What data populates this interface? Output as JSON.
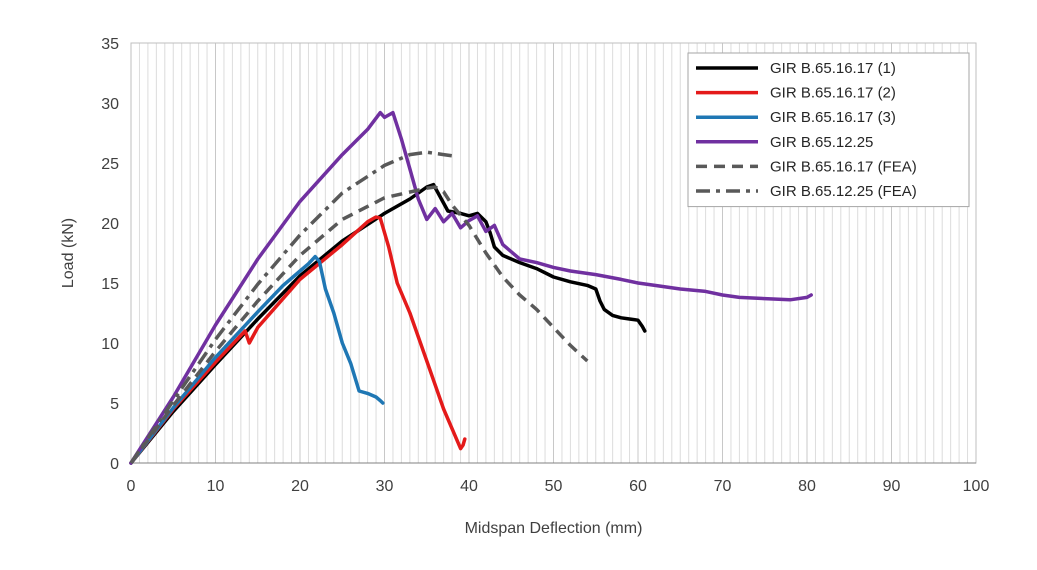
{
  "chart_data": {
    "type": "line",
    "title": "",
    "xlabel": "Midspan Deflection (mm)",
    "ylabel": "Load (kN)",
    "xlim": [
      0,
      100
    ],
    "ylim": [
      0,
      35
    ],
    "xticks": [
      0,
      10,
      20,
      30,
      40,
      50,
      60,
      70,
      80,
      90,
      100
    ],
    "yticks": [
      0,
      5,
      10,
      15,
      20,
      25,
      30,
      35
    ],
    "x_minor_grid_step": 1,
    "grid": true,
    "legend_position": "top-right",
    "series": [
      {
        "name": "GIR B.65.16.17 (1)",
        "color": "#000000",
        "dash": "solid",
        "points": [
          [
            0,
            0
          ],
          [
            5,
            4.3
          ],
          [
            10,
            8.2
          ],
          [
            15,
            12.0
          ],
          [
            20,
            15.6
          ],
          [
            25,
            18.5
          ],
          [
            30,
            20.8
          ],
          [
            33,
            22.0
          ],
          [
            35,
            23.0
          ],
          [
            35.8,
            23.2
          ],
          [
            36.5,
            22.3
          ],
          [
            37.5,
            21.0
          ],
          [
            39,
            20.8
          ],
          [
            40,
            20.6
          ],
          [
            41,
            20.8
          ],
          [
            42,
            20.1
          ],
          [
            42.5,
            19.2
          ],
          [
            43,
            18.0
          ],
          [
            44,
            17.3
          ],
          [
            46,
            16.7
          ],
          [
            48,
            16.2
          ],
          [
            50,
            15.5
          ],
          [
            52,
            15.1
          ],
          [
            54,
            14.8
          ],
          [
            55,
            14.5
          ],
          [
            55.5,
            13.5
          ],
          [
            56,
            12.8
          ],
          [
            57,
            12.3
          ],
          [
            58,
            12.1
          ],
          [
            59,
            12.0
          ],
          [
            60,
            11.9
          ],
          [
            60.5,
            11.4
          ],
          [
            60.8,
            11.0
          ]
        ]
      },
      {
        "name": "GIR B.65.16.17 (2)",
        "color": "#e41a1a",
        "dash": "solid",
        "points": [
          [
            0,
            0
          ],
          [
            5,
            4.5
          ],
          [
            10,
            8.4
          ],
          [
            13.5,
            11.0
          ],
          [
            14,
            10.0
          ],
          [
            15,
            11.3
          ],
          [
            20,
            15.3
          ],
          [
            25,
            18.2
          ],
          [
            28,
            20.1
          ],
          [
            29,
            20.5
          ],
          [
            29.5,
            20.4
          ],
          [
            30.5,
            18.0
          ],
          [
            31.5,
            15.0
          ],
          [
            33,
            12.5
          ],
          [
            35,
            8.5
          ],
          [
            37,
            4.5
          ],
          [
            39,
            1.2
          ],
          [
            39.3,
            1.5
          ],
          [
            39.5,
            2.0
          ]
        ]
      },
      {
        "name": "GIR B.65.16.17 (3)",
        "color": "#1f77b4",
        "dash": "solid",
        "points": [
          [
            0,
            0
          ],
          [
            5,
            4.6
          ],
          [
            10,
            8.8
          ],
          [
            15,
            12.6
          ],
          [
            18,
            14.8
          ],
          [
            20,
            16.0
          ],
          [
            21,
            16.6
          ],
          [
            21.8,
            17.2
          ],
          [
            22.3,
            16.8
          ],
          [
            23,
            14.5
          ],
          [
            24,
            12.5
          ],
          [
            25,
            10.0
          ],
          [
            26,
            8.3
          ],
          [
            27,
            6.0
          ],
          [
            28,
            5.8
          ],
          [
            29,
            5.5
          ],
          [
            29.5,
            5.2
          ],
          [
            29.8,
            5.0
          ]
        ]
      },
      {
        "name": "GIR B.65.12.25",
        "color": "#7030a0",
        "dash": "solid",
        "points": [
          [
            0,
            0
          ],
          [
            5,
            5.5
          ],
          [
            10,
            11.5
          ],
          [
            15,
            17.0
          ],
          [
            20,
            21.8
          ],
          [
            25,
            25.7
          ],
          [
            28,
            27.8
          ],
          [
            29.5,
            29.2
          ],
          [
            30,
            28.8
          ],
          [
            31,
            29.2
          ],
          [
            32,
            27.0
          ],
          [
            33,
            24.5
          ],
          [
            34,
            22.0
          ],
          [
            35,
            20.3
          ],
          [
            36,
            21.2
          ],
          [
            37,
            20.1
          ],
          [
            38,
            20.8
          ],
          [
            39,
            19.6
          ],
          [
            40,
            20.2
          ],
          [
            41,
            20.6
          ],
          [
            42,
            19.3
          ],
          [
            43,
            19.8
          ],
          [
            44,
            18.2
          ],
          [
            45,
            17.6
          ],
          [
            46,
            17.0
          ],
          [
            48,
            16.7
          ],
          [
            50,
            16.3
          ],
          [
            52,
            16.0
          ],
          [
            55,
            15.7
          ],
          [
            58,
            15.3
          ],
          [
            60,
            15.0
          ],
          [
            62,
            14.8
          ],
          [
            65,
            14.5
          ],
          [
            68,
            14.3
          ],
          [
            70,
            14.0
          ],
          [
            72,
            13.8
          ],
          [
            75,
            13.7
          ],
          [
            78,
            13.6
          ],
          [
            80,
            13.8
          ],
          [
            80.5,
            14.0
          ]
        ]
      },
      {
        "name": "GIR B.65.16.17 (FEA)",
        "color": "#595959",
        "dash": "dashed",
        "points": [
          [
            0,
            0
          ],
          [
            5,
            4.8
          ],
          [
            10,
            9.3
          ],
          [
            15,
            13.5
          ],
          [
            20,
            17.3
          ],
          [
            25,
            20.3
          ],
          [
            30,
            22.1
          ],
          [
            35,
            22.9
          ],
          [
            36,
            23.0
          ],
          [
            37,
            22.6
          ],
          [
            38,
            21.5
          ],
          [
            40,
            19.8
          ],
          [
            42,
            17.5
          ],
          [
            44,
            15.5
          ],
          [
            46,
            14.0
          ],
          [
            48,
            12.8
          ],
          [
            50,
            11.3
          ],
          [
            52,
            9.8
          ],
          [
            54,
            8.5
          ]
        ]
      },
      {
        "name": "GIR B.65.12.25 (FEA)",
        "color": "#595959",
        "dash": "dashdot",
        "points": [
          [
            0,
            0
          ],
          [
            5,
            5.2
          ],
          [
            10,
            10.3
          ],
          [
            15,
            14.9
          ],
          [
            20,
            19.0
          ],
          [
            25,
            22.5
          ],
          [
            30,
            24.8
          ],
          [
            33,
            25.7
          ],
          [
            35,
            25.9
          ],
          [
            37,
            25.7
          ],
          [
            38,
            25.6
          ]
        ]
      }
    ]
  }
}
